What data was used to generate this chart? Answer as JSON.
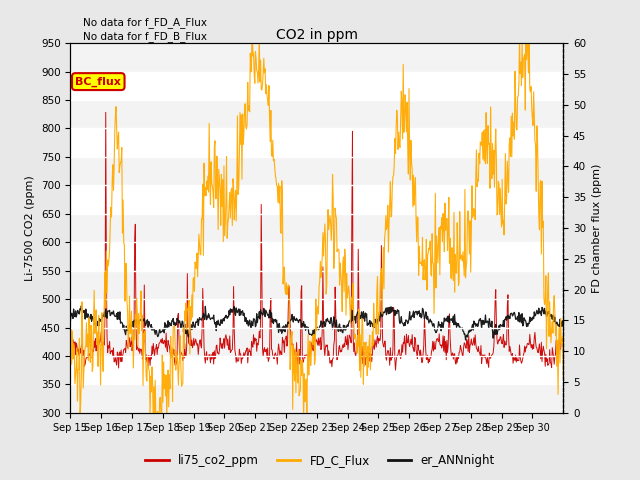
{
  "title": "CO2 in ppm",
  "ylabel_left": "Li-7500 CO2 (ppm)",
  "ylabel_right": "FD chamber flux (ppm)",
  "ylim_left": [
    300,
    950
  ],
  "ylim_right": [
    0,
    60
  ],
  "yticks_left": [
    300,
    350,
    400,
    450,
    500,
    550,
    600,
    650,
    700,
    750,
    800,
    850,
    900,
    950
  ],
  "yticks_right": [
    0,
    5,
    10,
    15,
    20,
    25,
    30,
    35,
    40,
    45,
    50,
    55,
    60
  ],
  "xticklabels": [
    "Sep 15",
    "Sep 16",
    "Sep 17",
    "Sep 18",
    "Sep 19",
    "Sep 20",
    "Sep 21",
    "Sep 22",
    "Sep 23",
    "Sep 24",
    "Sep 25",
    "Sep 26",
    "Sep 27",
    "Sep 28",
    "Sep 29",
    "Sep 30"
  ],
  "note1": "No data for f_FD_A_Flux",
  "note2": "No data for f_FD_B_Flux",
  "bc_flux_label": "BC_flux",
  "legend_entries": [
    "li75_co2_ppm",
    "FD_C_Flux",
    "er_ANNnight"
  ],
  "line_colors": [
    "#cc0000",
    "#ffaa00",
    "#111111"
  ],
  "bc_flux_box_color": "#ffff00",
  "bc_flux_text_color": "#cc0000",
  "background_color": "#e8e8e8",
  "plot_bg_color": "#ffffff"
}
